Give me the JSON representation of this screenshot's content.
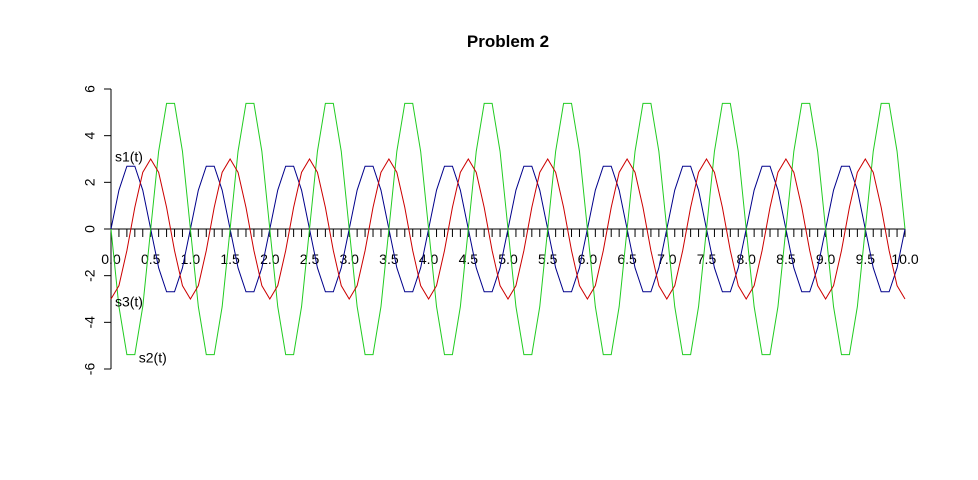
{
  "chart_data": {
    "type": "line",
    "title": "Problem 2",
    "xlabel": "",
    "ylabel": "",
    "xlim": [
      0,
      10
    ],
    "ylim": [
      -6,
      6
    ],
    "x_step": 0.1,
    "x_tick_labels": [
      "0.0",
      "0.5",
      "1.0",
      "1.5",
      "2.0",
      "2.5",
      "3.0",
      "3.5",
      "4.0",
      "4.5",
      "5.0",
      "5.5",
      "6.0",
      "6.5",
      "7.0",
      "7.5",
      "8.0",
      "8.5",
      "9.0",
      "9.5",
      "10.0"
    ],
    "y_ticks": [
      -6,
      -4,
      -2,
      0,
      2,
      4,
      6
    ],
    "y_tick_labels": [
      "-6",
      "-4",
      "-2",
      "0",
      "2",
      "4",
      "6"
    ],
    "series": [
      {
        "name": "s1(t)",
        "color": "#00008b",
        "formula": "2.83 * sin(2*pi*t)",
        "label_at": {
          "x": 0.1,
          "y": 3.1
        }
      },
      {
        "name": "s2(t)",
        "color": "#22cc22",
        "formula": "-5.66 * sin(2*pi*t)",
        "label_at": {
          "x": 0.4,
          "y": -5.5
        }
      },
      {
        "name": "s3(t)",
        "color": "#cc0000",
        "formula": "-3 * cos(2*pi*t)",
        "label_at": {
          "x": 0.1,
          "y": -3.1
        }
      }
    ],
    "amplitudes": {
      "s1(t)": 2.83,
      "s2(t)": 5.66,
      "s3(t)": 3.0
    },
    "frequency_hz": 1,
    "grid": false,
    "legend": "inline labels"
  }
}
